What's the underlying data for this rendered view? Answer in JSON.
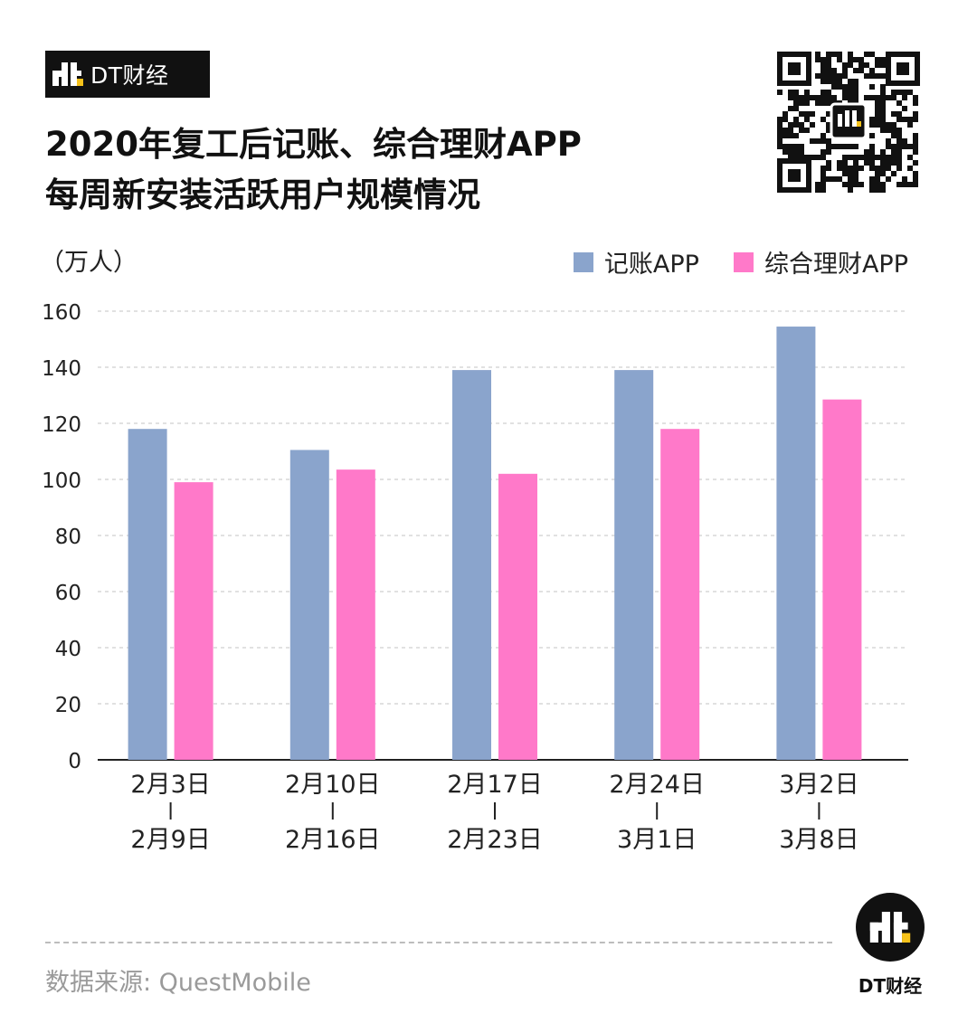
{
  "brand": {
    "name": "DT财经"
  },
  "title": {
    "line1": "2020年复工后记账、综合理财APP",
    "line2": "每周新安装活跃用户规模情况"
  },
  "unit_label": "（万人）",
  "source": "数据来源: QuestMobile",
  "footer_brand": "DT财经",
  "colors": {
    "series1": "#8aa4cc",
    "series2": "#ff79c9",
    "grid": "#cfcfcf"
  },
  "chart_data": {
    "type": "bar",
    "categories": [
      {
        "top": "2月3日",
        "bottom": "2月9日"
      },
      {
        "top": "2月10日",
        "bottom": "2月16日"
      },
      {
        "top": "2月17日",
        "bottom": "2月23日"
      },
      {
        "top": "2月24日",
        "bottom": "3月1日"
      },
      {
        "top": "3月2日",
        "bottom": "3月8日"
      }
    ],
    "series": [
      {
        "name": "记账APP",
        "values": [
          118,
          110.5,
          139,
          139,
          154.5
        ]
      },
      {
        "name": "综合理财APP",
        "values": [
          99,
          103.5,
          102,
          118,
          128.5
        ]
      }
    ],
    "ylim": [
      0,
      160
    ],
    "yticks": [
      0,
      20,
      40,
      60,
      80,
      100,
      120,
      140,
      160
    ],
    "ylabel": "（万人）",
    "grid": true,
    "legend": "top-right"
  }
}
